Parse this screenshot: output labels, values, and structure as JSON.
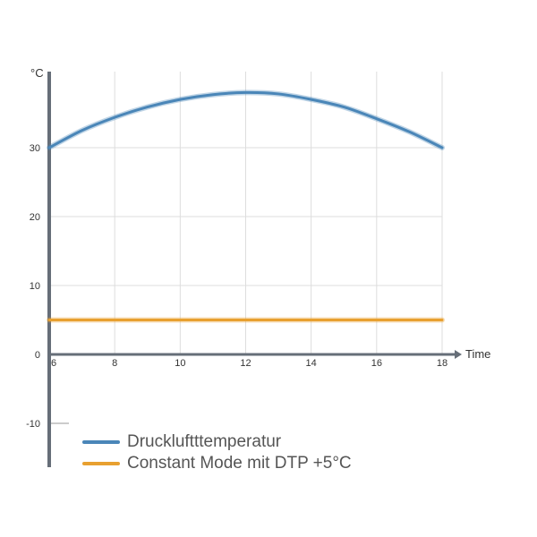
{
  "chart_data": {
    "type": "line",
    "xlabel": "Time",
    "ylabel": "°C",
    "xlim": [
      6,
      18
    ],
    "ylim": [
      -10,
      40
    ],
    "x_ticks": [
      6,
      8,
      10,
      12,
      14,
      16,
      18
    ],
    "y_ticks": [
      -10,
      0,
      10,
      20,
      30
    ],
    "grid": true,
    "legend_position": "bottom-left",
    "series": [
      {
        "name": "Druckluftttemperatur",
        "color": "#4a86b8",
        "x": [
          6,
          7,
          8,
          9,
          10,
          11,
          12,
          13,
          14,
          15,
          16,
          17,
          18
        ],
        "values": [
          30,
          32.5,
          34.4,
          35.9,
          37,
          37.7,
          38,
          37.8,
          37,
          35.9,
          34.2,
          32.3,
          30
        ]
      },
      {
        "name": "Constant Mode mit DTP +5°C",
        "color": "#e8a030",
        "x": [
          6,
          18
        ],
        "values": [
          5,
          5
        ]
      }
    ]
  },
  "legend": {
    "items": [
      {
        "label": "Druckluftttemperatur",
        "color": "#4a86b8"
      },
      {
        "label": "Constant Mode mit DTP +5°C",
        "color": "#e8a030"
      }
    ]
  }
}
